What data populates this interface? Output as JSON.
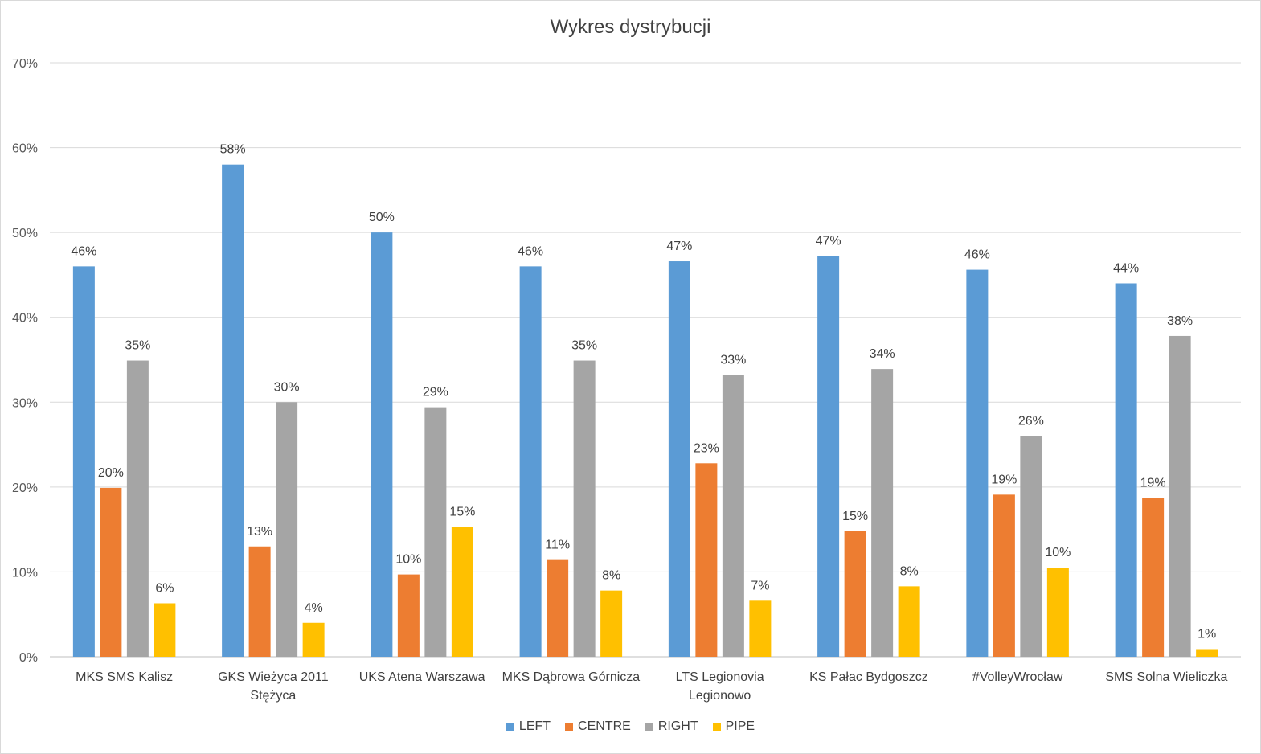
{
  "chart_data": {
    "type": "bar",
    "title": "Wykres dystrybucji",
    "xlabel": "",
    "ylabel": "",
    "ylim": [
      0,
      0.7
    ],
    "yticks": [
      "0%",
      "10%",
      "20%",
      "30%",
      "40%",
      "50%",
      "60%",
      "70%"
    ],
    "grid": true,
    "legend_position": "bottom",
    "categories": [
      [
        "MKS SMS Kalisz"
      ],
      [
        "GKS Wieżyca 2011",
        "Stężyca"
      ],
      [
        "UKS Atena Warszawa"
      ],
      [
        "MKS Dąbrowa Górnicza"
      ],
      [
        "LTS Legionovia",
        "Legionowo"
      ],
      [
        "KS Pałac Bydgoszcz"
      ],
      [
        "#VolleyWrocław"
      ],
      [
        "SMS Solna Wieliczka"
      ]
    ],
    "series": [
      {
        "name": "LEFT",
        "color": "#5B9BD5",
        "values": [
          0.46,
          0.58,
          0.5,
          0.46,
          0.466,
          0.472,
          0.456,
          0.44
        ],
        "labels": [
          "46%",
          "58%",
          "50%",
          "46%",
          "47%",
          "47%",
          "46%",
          "44%"
        ]
      },
      {
        "name": "CENTRE",
        "color": "#ED7D31",
        "values": [
          0.199,
          0.13,
          0.097,
          0.114,
          0.228,
          0.148,
          0.191,
          0.187
        ],
        "labels": [
          "20%",
          "13%",
          "10%",
          "11%",
          "23%",
          "15%",
          "19%",
          "19%"
        ]
      },
      {
        "name": "RIGHT",
        "color": "#A5A5A5",
        "values": [
          0.349,
          0.3,
          0.294,
          0.349,
          0.332,
          0.339,
          0.26,
          0.378
        ],
        "labels": [
          "35%",
          "30%",
          "29%",
          "35%",
          "33%",
          "34%",
          "26%",
          "38%"
        ]
      },
      {
        "name": "PIPE",
        "color": "#FFC000",
        "values": [
          0.063,
          0.04,
          0.153,
          0.078,
          0.066,
          0.083,
          0.105,
          0.009
        ],
        "labels": [
          "6%",
          "4%",
          "15%",
          "8%",
          "7%",
          "8%",
          "10%",
          "1%"
        ]
      }
    ]
  }
}
